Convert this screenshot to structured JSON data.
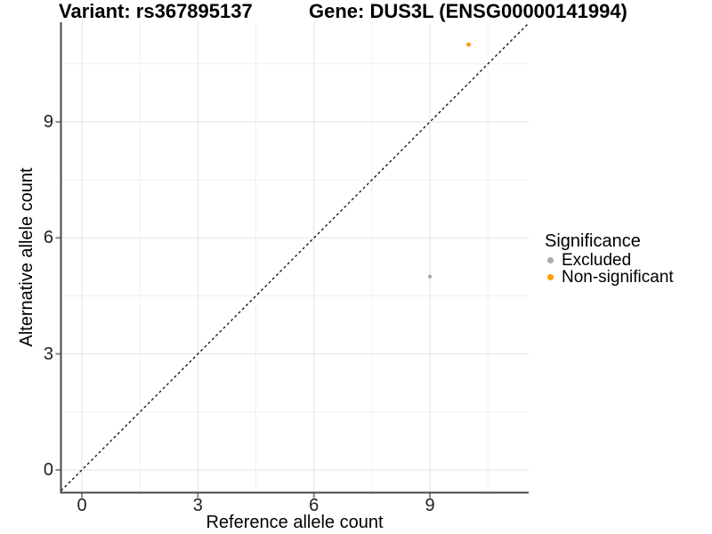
{
  "chart_data": {
    "type": "scatter",
    "titles": {
      "left": "Variant: rs367895137",
      "right": "Gene: DUS3L (ENSG00000141994)"
    },
    "x_axis": {
      "label": "Reference allele count",
      "ticks": [
        0,
        3,
        6,
        9
      ],
      "minor_ticks": [
        1.5,
        4.5,
        7.5,
        10.5
      ],
      "range": [
        -0.55,
        11.57
      ]
    },
    "y_axis": {
      "label": "Alternative allele count",
      "ticks": [
        0,
        3,
        6,
        9
      ],
      "minor_ticks": [
        1.5,
        4.5,
        7.5,
        10.5
      ],
      "range": [
        -0.59,
        11.59
      ]
    },
    "points": [
      {
        "x": 9,
        "y": 5,
        "series": "Excluded",
        "color": "#ABABAB",
        "size": 2.2
      },
      {
        "x": 10,
        "y": 11,
        "series": "Non-significant",
        "color": "#FC9E20",
        "size": 2.6
      }
    ],
    "reference_line": {
      "kind": "identity y=x",
      "style": "dashed",
      "color": "#000000"
    },
    "legend": {
      "title": "Significance",
      "position": "right",
      "items": [
        {
          "label": "Excluded",
          "color": "#ABABAB"
        },
        {
          "label": "Non-significant",
          "color": "#FF9E00"
        }
      ]
    },
    "grid": true,
    "background": "#FFFFFF"
  },
  "colors": {
    "grid_major": "#E3E3E3",
    "grid_minor": "#F0F0F0",
    "axis_line": "#474747",
    "tick_mark": "#8A8A8A",
    "dash_line": "#0A0A0A"
  }
}
